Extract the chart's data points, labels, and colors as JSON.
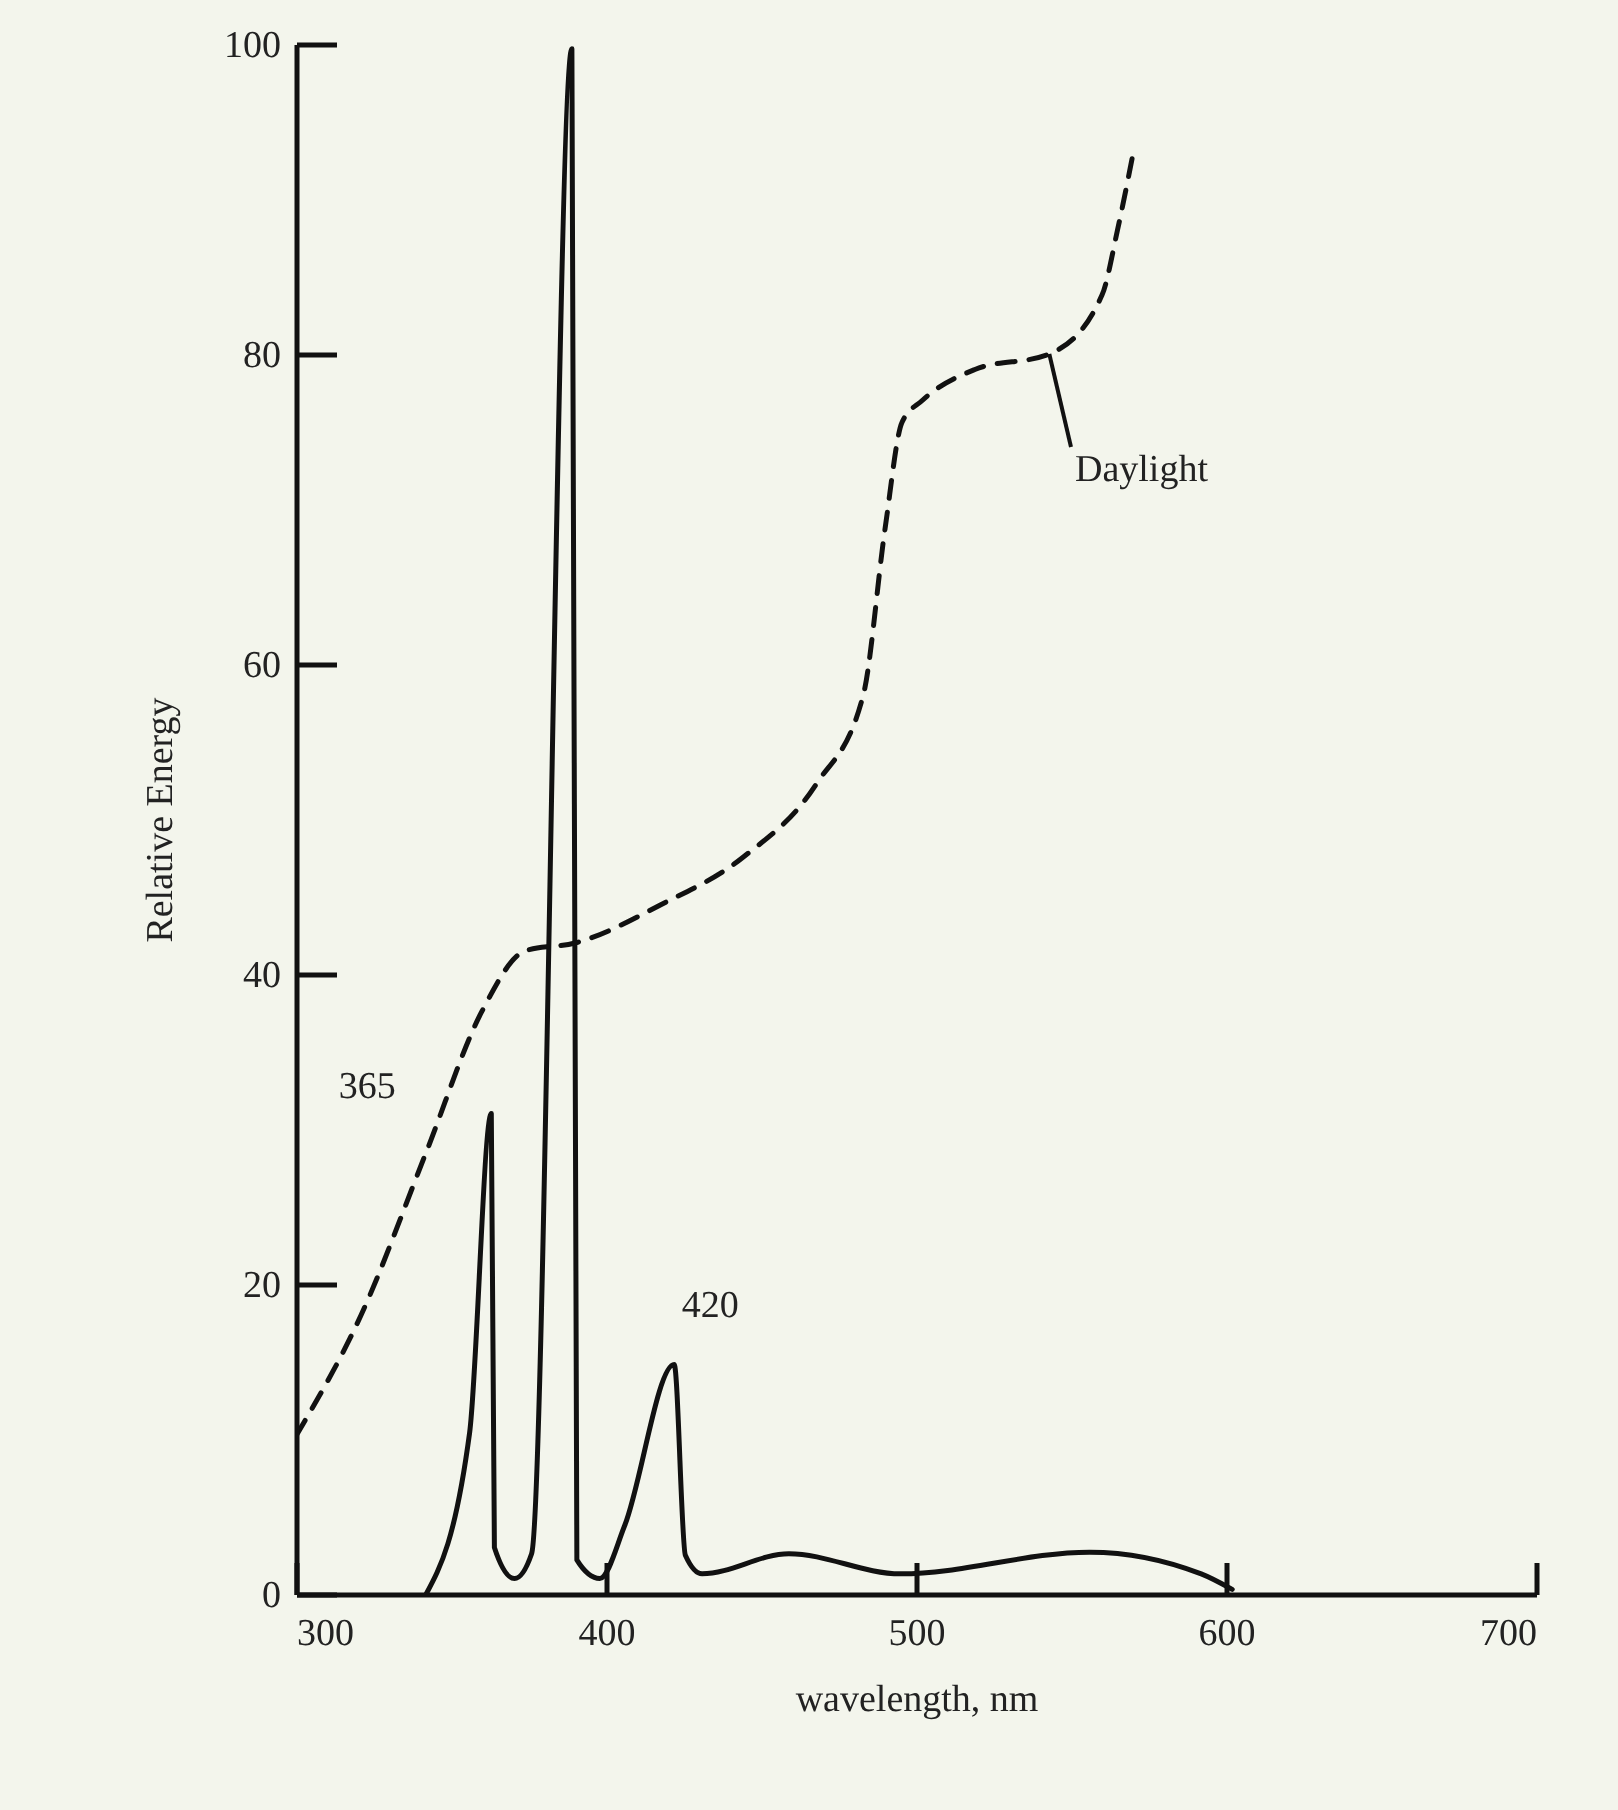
{
  "chart_data": {
    "type": "line",
    "xlabel": "wavelength, nm",
    "ylabel": "Relative Energy",
    "xlim": [
      300,
      700
    ],
    "xticks": [
      300,
      400,
      500,
      600,
      700
    ],
    "ylim": [
      0,
      100
    ],
    "yticks": [
      0,
      20,
      40,
      60,
      80,
      100
    ],
    "grid": false,
    "series": [
      {
        "color": "#111111",
        "line_style": "solid",
        "x": [
          342,
          356,
          363,
          364,
          370.5,
          376,
          389,
          390.6,
          398,
          406,
          422,
          425.6,
          431,
          459,
          495,
          556,
          592,
          602
        ],
        "values": [
          0,
          10.4,
          31,
          3,
          1,
          2.6,
          99.7,
          2.2,
          1,
          4.4,
          14.8,
          2.5,
          1.3,
          2.6,
          1.3,
          2.7,
          1.3,
          0.3
        ]
      },
      {
        "name": "Daylight",
        "color": "#111111",
        "line_style": "dashed",
        "x": [
          300,
          321,
          342,
          360,
          374,
          390,
          418,
          444,
          468,
          483,
          490,
          495.5,
          502,
          519,
          543,
          560,
          565,
          570
        ],
        "values": [
          10.2,
          18,
          28.5,
          37.6,
          41.5,
          42,
          44.5,
          47.5,
          52.3,
          58,
          68.7,
          75.6,
          77,
          79,
          80,
          83.8,
          88,
          92.9
        ]
      }
    ],
    "annotations": [
      {
        "text": "365",
        "x": 363,
        "y": 31
      },
      {
        "text": "420",
        "x": 422,
        "y": 14.8
      }
    ]
  }
}
